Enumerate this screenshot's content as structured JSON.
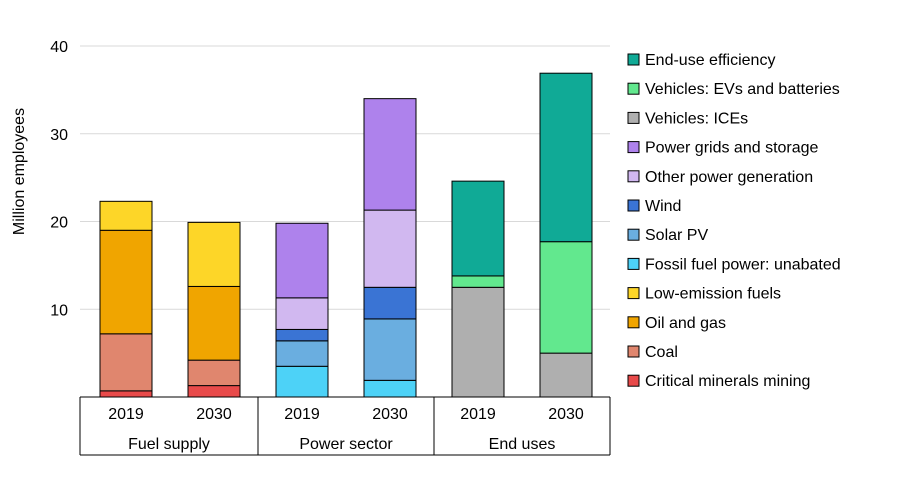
{
  "chart_data": {
    "type": "bar",
    "stacked": true,
    "ylabel": "Million employees",
    "ylim": [
      0,
      40
    ],
    "yticks": [
      10,
      20,
      30,
      40
    ],
    "grid": true,
    "legend_position": "right",
    "groups": [
      {
        "name": "Fuel supply",
        "categories": [
          "2019",
          "2030"
        ]
      },
      {
        "name": "Power sector",
        "categories": [
          "2019",
          "2030"
        ]
      },
      {
        "name": "End uses",
        "categories": [
          "2019",
          "2030"
        ]
      }
    ],
    "series": [
      {
        "name": "Critical minerals mining",
        "color": "#e84a4a",
        "values": [
          0.7,
          1.3,
          0,
          0,
          0,
          0
        ]
      },
      {
        "name": "Coal",
        "color": "#e0866e",
        "values": [
          6.5,
          2.9,
          0,
          0,
          0,
          0
        ]
      },
      {
        "name": "Oil and gas",
        "color": "#f0a500",
        "values": [
          11.8,
          8.4,
          0,
          0,
          0,
          0
        ]
      },
      {
        "name": "Low-emission fuels",
        "color": "#fdd628",
        "values": [
          3.3,
          7.3,
          0,
          0,
          0,
          0
        ]
      },
      {
        "name": "Fossil fuel power: unabated",
        "color": "#4dd2f7",
        "values": [
          0,
          0,
          3.5,
          1.9,
          0,
          0
        ]
      },
      {
        "name": "Solar PV",
        "color": "#6aaee0",
        "values": [
          0,
          0,
          2.9,
          7.0,
          0,
          0
        ]
      },
      {
        "name": "Wind",
        "color": "#3a74d4",
        "values": [
          0,
          0,
          1.3,
          3.6,
          0,
          0
        ]
      },
      {
        "name": "Other power generation",
        "color": "#d1b8f0",
        "values": [
          0,
          0,
          3.6,
          8.8,
          0,
          0
        ]
      },
      {
        "name": "Power grids and storage",
        "color": "#ae82ec",
        "values": [
          0,
          0,
          8.5,
          12.7,
          0,
          0
        ]
      },
      {
        "name": "Vehicles: ICEs",
        "color": "#afafaf",
        "values": [
          0,
          0,
          0,
          0,
          12.5,
          5.0
        ]
      },
      {
        "name": "Vehicles: EVs and batteries",
        "color": "#62e88e",
        "values": [
          0,
          0,
          0,
          0,
          1.3,
          12.7
        ]
      },
      {
        "name": "End-use efficiency",
        "color": "#10aa96",
        "values": [
          0,
          0,
          0,
          0,
          10.8,
          19.2
        ]
      }
    ]
  }
}
